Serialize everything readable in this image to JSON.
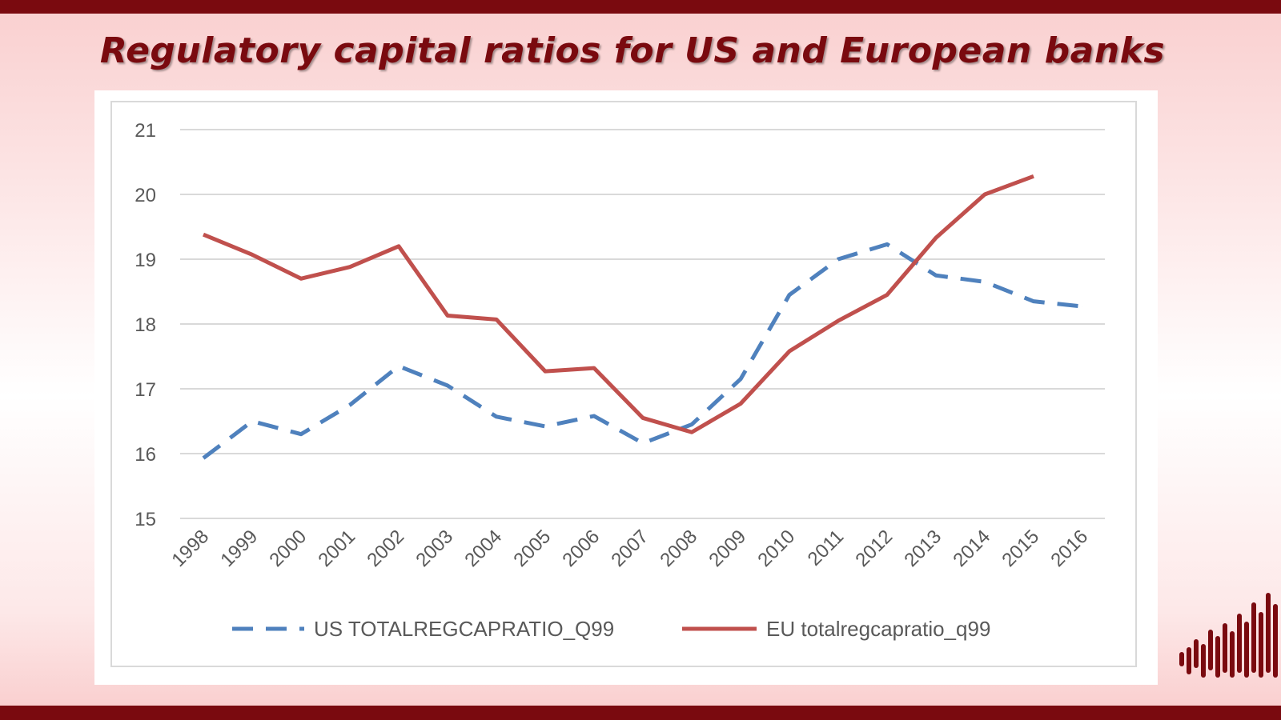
{
  "title": "Regulatory capital ratios for US and European banks",
  "colors": {
    "us": "#4f81bd",
    "eu": "#c0504d",
    "brand": "#7a0a0f",
    "grid": "#d9d9d9",
    "text": "#595959"
  },
  "chart_data": {
    "type": "line",
    "title": "",
    "xlabel": "",
    "ylabel": "",
    "ylim": [
      15,
      21
    ],
    "yticks": [
      15,
      16,
      17,
      18,
      19,
      20,
      21
    ],
    "grid": true,
    "legend_position": "bottom",
    "categories": [
      "1998",
      "1999",
      "2000",
      "2001",
      "2002",
      "2003",
      "2004",
      "2005",
      "2006",
      "2007",
      "2008",
      "2009",
      "2010",
      "2011",
      "2012",
      "2013",
      "2014",
      "2015",
      "2016"
    ],
    "series": [
      {
        "name": "US TOTALREGCAPRATIO_Q99",
        "style": "dashed",
        "color": "#4f81bd",
        "values": [
          15.93,
          16.5,
          16.3,
          16.75,
          17.35,
          17.05,
          16.57,
          16.42,
          16.58,
          16.16,
          16.45,
          17.15,
          18.45,
          19.0,
          19.23,
          18.75,
          18.65,
          18.35,
          18.27
        ]
      },
      {
        "name": "EU totalregcapratio_q99",
        "style": "solid",
        "color": "#c0504d",
        "values": [
          19.38,
          19.07,
          18.7,
          18.88,
          19.2,
          18.13,
          18.07,
          17.27,
          17.32,
          16.55,
          16.33,
          16.77,
          17.58,
          18.05,
          18.45,
          19.33,
          20.0,
          20.28,
          null
        ]
      }
    ]
  }
}
